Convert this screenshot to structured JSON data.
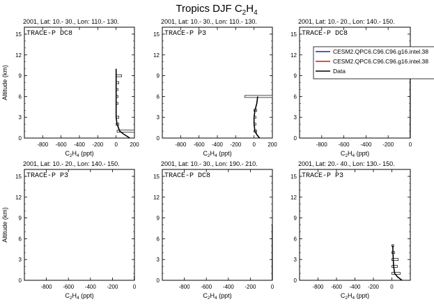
{
  "figure": {
    "title_main": "Tropics DJF C",
    "title_sub": "2",
    "title_mid": "H",
    "title_sub2": "4",
    "ylabel": "Altitude (km)",
    "xlabel_main": "C",
    "xlabel_sub": "2",
    "xlabel_mid": "H",
    "xlabel_sub2": "4",
    "xlabel_unit": " (ppt)"
  },
  "legend": {
    "entries": [
      {
        "label": "CESM2.QPC6.C96.C96.g16.intel.38",
        "color": "#1f1fd0"
      },
      {
        "label": "CESM2.QPC6.C96.C96.g16.intel.38",
        "color": "#e01010"
      },
      {
        "label": "Data",
        "color": "#000000"
      }
    ]
  },
  "chart_data": [
    {
      "type": "line",
      "title": "2001, Lat: 10.- 30., Lon: 110.- 130.",
      "campaign": "TRACE-P DC8",
      "xlim": [
        -1000,
        200
      ],
      "ylim": [
        0,
        16
      ],
      "xticks": [
        -800,
        -600,
        -400,
        -200,
        0,
        200
      ],
      "yticks": [
        0,
        3,
        6,
        9,
        12,
        15
      ],
      "series": [
        {
          "name": "Data",
          "x": [
            150,
            90,
            40,
            10,
            0,
            0,
            0
          ],
          "y": [
            0,
            0.5,
            1,
            2,
            3,
            6,
            10
          ]
        }
      ],
      "boxes": [
        {
          "y": 1,
          "x0": 10,
          "x1": 200
        },
        {
          "y": 2,
          "x0": 0,
          "x1": 30
        },
        {
          "y": 3,
          "x0": 0,
          "x1": 30
        },
        {
          "y": 5,
          "x0": 0,
          "x1": 20
        },
        {
          "y": 6,
          "x0": 0,
          "x1": 20
        },
        {
          "y": 7,
          "x0": 0,
          "x1": 20
        },
        {
          "y": 8,
          "x0": 0,
          "x1": 30
        },
        {
          "y": 9,
          "x0": 0,
          "x1": 60
        }
      ]
    },
    {
      "type": "line",
      "title": "2001, Lat: 10.- 30., Lon: 110.- 130.",
      "campaign": "TRACE-P P3",
      "xlim": [
        -1000,
        200
      ],
      "ylim": [
        0,
        16
      ],
      "xticks": [
        -800,
        -600,
        -400,
        -200,
        0,
        200
      ],
      "yticks": [
        0,
        3,
        6,
        9,
        12,
        15
      ],
      "series": [
        {
          "name": "Data",
          "x": [
            60,
            30,
            10,
            0,
            0,
            10,
            30,
            40
          ],
          "y": [
            0,
            0.5,
            1,
            2,
            3,
            4,
            5,
            6
          ]
        }
      ],
      "boxes": [
        {
          "y": 1,
          "x0": 0,
          "x1": 30
        },
        {
          "y": 2,
          "x0": 0,
          "x1": 20
        },
        {
          "y": 3,
          "x0": 0,
          "x1": 20
        },
        {
          "y": 4,
          "x0": 0,
          "x1": 30
        },
        {
          "y": 6,
          "x0": -100,
          "x1": 200
        }
      ]
    },
    {
      "type": "line",
      "title": "2001, Lat: 10.- 20., Lon: 140.- 150.",
      "campaign": "TRACE-P DC8",
      "xlim": [
        -1000,
        0
      ],
      "ylim": [
        0,
        16
      ],
      "xticks": [
        -800,
        -600,
        -400,
        -200,
        0
      ],
      "yticks": [
        0,
        3,
        6,
        9,
        12,
        15
      ],
      "series": [
        {
          "name": "Data",
          "x": [
            0,
            0,
            0
          ],
          "y": [
            0,
            5,
            10
          ]
        }
      ],
      "boxes": []
    },
    {
      "type": "line",
      "title": "2001, Lat: 10.- 20., Lon: 140.- 150.",
      "campaign": "TRACE-P P3",
      "xlim": [
        -1000,
        0
      ],
      "ylim": [
        0,
        16
      ],
      "xticks": [
        -800,
        -600,
        -400,
        -200,
        0
      ],
      "yticks": [
        0,
        3,
        6,
        9,
        12,
        15
      ],
      "series": [
        {
          "name": "Data",
          "x": [
            0,
            0
          ],
          "y": [
            0,
            0.6
          ]
        }
      ],
      "boxes": []
    },
    {
      "type": "line",
      "title": "2001, Lat: 10.- 30., Lon: 190.- 210.",
      "campaign": "TRACE-P DC8",
      "xlim": [
        -1000,
        0
      ],
      "ylim": [
        0,
        16
      ],
      "xticks": [
        -800,
        -600,
        -400,
        -200,
        0
      ],
      "yticks": [
        0,
        3,
        6,
        9,
        12,
        15
      ],
      "series": [
        {
          "name": "Data",
          "x": [
            0,
            0,
            0
          ],
          "y": [
            0,
            4,
            8
          ]
        }
      ],
      "boxes": []
    },
    {
      "type": "line",
      "title": "2001, Lat: 20.- 40., Lon: 130.- 150.",
      "campaign": "TRACE-P P3",
      "xlim": [
        -1000,
        200
      ],
      "ylim": [
        0,
        16
      ],
      "xticks": [
        -800,
        -600,
        -400,
        -200,
        0
      ],
      "yticks": [
        0,
        3,
        6,
        9,
        12,
        15
      ],
      "series": [
        {
          "name": "Data",
          "x": [
            110,
            60,
            30,
            20,
            15,
            10
          ],
          "y": [
            0,
            0.5,
            1,
            2,
            3,
            5
          ]
        }
      ],
      "boxes": [
        {
          "y": 1,
          "x0": 0,
          "x1": 90
        },
        {
          "y": 2,
          "x0": 0,
          "x1": 60
        },
        {
          "y": 3,
          "x0": 0,
          "x1": 70
        },
        {
          "y": 4,
          "x0": 0,
          "x1": 30
        },
        {
          "y": 5,
          "x0": 0,
          "x1": 20
        }
      ]
    }
  ]
}
